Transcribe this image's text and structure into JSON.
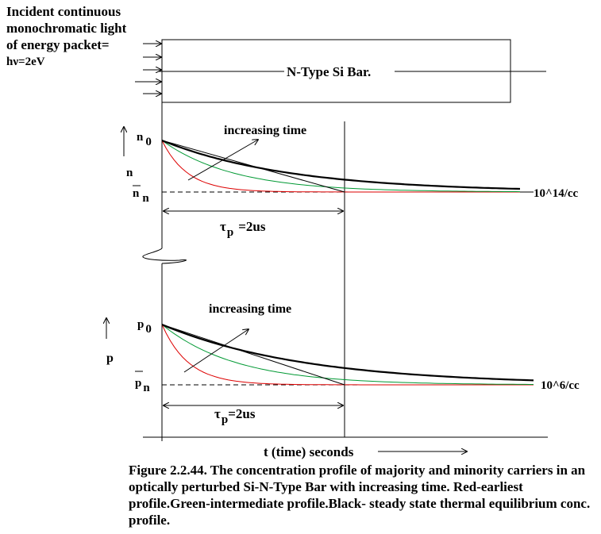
{
  "incident_label": [
    "Incident continuous",
    "monochromatic light",
    "of energy packet=",
    "hν=2eV"
  ],
  "bar_label": "N-Type Si Bar.",
  "top_plot": {
    "axis_label": "n",
    "start_label": "n",
    "start_sub": "0",
    "eq_label": "n",
    "eq_sub": "n",
    "eq_value": "10^14/cc",
    "arrow_label": "increasing time",
    "tau_label": "τ",
    "tau_sub": "p",
    "tau_value": "=2us"
  },
  "bottom_plot": {
    "axis_label": "p",
    "start_label": "p",
    "start_sub": "0",
    "eq_label": "p",
    "eq_sub": "n",
    "eq_value": "10^6/cc",
    "arrow_label": "increasing time",
    "tau_label": "τ",
    "tau_sub": "p",
    "tau_value": "=2us"
  },
  "time_axis_label": "t (time) seconds",
  "caption": "Figure 2.2.44. The concentration profile of majority and minority carriers in an optically perturbed Si-N-Type Bar with increasing time. Red-earliest profile.Green-intermediate profile.Black- steady state thermal equilibrium conc. profile.",
  "colors": {
    "red": "#dd0000",
    "green": "#009933",
    "black": "#000000"
  }
}
